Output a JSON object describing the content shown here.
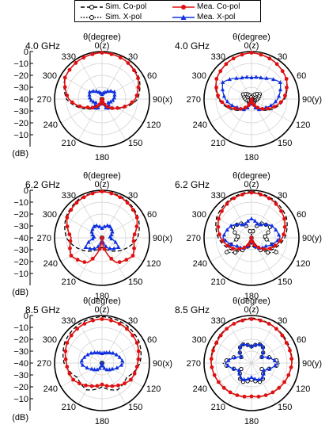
{
  "legend": [
    {
      "label": "Sim. Co-pol",
      "color": "#000000",
      "dash": "5,3",
      "marker": "none"
    },
    {
      "label": "Mea. Co-pol",
      "color": "#e01010",
      "dash": "",
      "marker": "dot"
    },
    {
      "label": "Sim. X-pol",
      "color": "#000000",
      "dash": "1.5,2",
      "marker": "circle"
    },
    {
      "label": "Mea. X-pol",
      "color": "#1030e0",
      "dash": "",
      "marker": "triangle"
    }
  ],
  "theta_title": "θ(degree)",
  "angle_labels": {
    "0": "0(z)",
    "30": "30",
    "60": "60",
    "120": "120",
    "150": "150",
    "180": "180",
    "210": "210",
    "240": "240",
    "270": "270",
    "300": "300",
    "330": "330"
  },
  "radial_ticks": [
    "0",
    "−10",
    "−20",
    "−30",
    "−40",
    "−30",
    "−20",
    "−10"
  ],
  "db_label": "(dB)",
  "colors": {
    "sim_co": "#000000",
    "mea_co": "#e01010",
    "sim_x": "#000000",
    "mea_x": "#1030e0"
  },
  "chart_data": [
    {
      "type": "polar",
      "frequency": "4.0 GHz",
      "axis90": "90(x)",
      "rlim": [
        -40,
        0
      ],
      "sim_co": {
        "theta": [
          0,
          30,
          60,
          90,
          120,
          150,
          180,
          210,
          240,
          270,
          300,
          330,
          360
        ],
        "db": [
          -1,
          -2,
          -4,
          -10,
          -24,
          -33,
          -36,
          -33,
          -24,
          -10,
          -4,
          -2,
          -1
        ]
      },
      "mea_co": {
        "theta": [
          0,
          30,
          60,
          90,
          120,
          150,
          180,
          210,
          240,
          270,
          300,
          330,
          360
        ],
        "db": [
          -1,
          -2,
          -5,
          -12,
          -25,
          -34,
          -40,
          -34,
          -26,
          -12,
          -4,
          -2,
          -1
        ]
      },
      "sim_x": {
        "theta": [
          0,
          60,
          120,
          180,
          240,
          300,
          360
        ],
        "db": [
          -40,
          -40,
          -40,
          -40,
          -40,
          -40,
          -40
        ]
      },
      "mea_x": {
        "theta": [
          0,
          30,
          60,
          90,
          120,
          150,
          180,
          210,
          240,
          270,
          300,
          330,
          360
        ],
        "db": [
          -36,
          -33,
          -28,
          -30,
          -34,
          -30,
          -40,
          -30,
          -34,
          -30,
          -28,
          -33,
          -36
        ]
      }
    },
    {
      "type": "polar",
      "frequency": "4.0 GHz",
      "axis90": "90(y)",
      "rlim": [
        -40,
        0
      ],
      "sim_co": {
        "theta": [
          0,
          30,
          60,
          90,
          120,
          150,
          180,
          210,
          240,
          270,
          300,
          330,
          360
        ],
        "db": [
          -1,
          -3,
          -6,
          -12,
          -22,
          -32,
          -36,
          -32,
          -22,
          -12,
          -6,
          -3,
          -1
        ]
      },
      "mea_co": {
        "theta": [
          0,
          30,
          60,
          90,
          120,
          150,
          180,
          210,
          240,
          270,
          300,
          330,
          360
        ],
        "db": [
          -1,
          -3,
          -6,
          -13,
          -24,
          -33,
          -40,
          -33,
          -24,
          -13,
          -6,
          -3,
          -1
        ]
      },
      "sim_x": {
        "theta": [
          0,
          30,
          60,
          90,
          120,
          150,
          180,
          210,
          240,
          270,
          300,
          330,
          360
        ],
        "db": [
          -40,
          -36,
          -32,
          -35,
          -38,
          -36,
          -40,
          -36,
          -38,
          -35,
          -32,
          -36,
          -40
        ]
      },
      "mea_x": {
        "theta": [
          0,
          30,
          60,
          90,
          120,
          150,
          180,
          210,
          240,
          270,
          300,
          330,
          360
        ],
        "db": [
          -22,
          -20,
          -12,
          -18,
          -26,
          -30,
          -40,
          -30,
          -26,
          -18,
          -12,
          -20,
          -22
        ]
      }
    },
    {
      "type": "polar",
      "frequency": "6.2 GHz",
      "axis90": "90(x)",
      "rlim": [
        -40,
        0
      ],
      "sim_co": {
        "theta": [
          0,
          30,
          60,
          90,
          120,
          150,
          180,
          210,
          240,
          270,
          300,
          330,
          360
        ],
        "db": [
          -1,
          -2,
          -5,
          -10,
          -20,
          -28,
          -32,
          -28,
          -20,
          -10,
          -5,
          -2,
          -1
        ]
      },
      "mea_co": {
        "theta": [
          0,
          30,
          60,
          90,
          120,
          150,
          180,
          210,
          240,
          270,
          300,
          330,
          360
        ],
        "db": [
          -1,
          -3,
          -6,
          -14,
          -10,
          -16,
          -40,
          -16,
          -10,
          -14,
          -6,
          -3,
          -1
        ]
      },
      "sim_x": {
        "theta": [
          0,
          60,
          120,
          180,
          240,
          300,
          360
        ],
        "db": [
          -40,
          -40,
          -40,
          -40,
          -40,
          -40,
          -40
        ]
      },
      "mea_x": {
        "theta": [
          0,
          30,
          60,
          90,
          120,
          150,
          180,
          210,
          240,
          270,
          300,
          330,
          360
        ],
        "db": [
          -32,
          -28,
          -30,
          -34,
          -24,
          -30,
          -40,
          -30,
          -24,
          -34,
          -30,
          -28,
          -32
        ]
      }
    },
    {
      "type": "polar",
      "frequency": "6.2 GHz",
      "axis90": "90(y)",
      "rlim": [
        -40,
        0
      ],
      "sim_co": {
        "theta": [
          0,
          30,
          60,
          90,
          120,
          150,
          180,
          210,
          240,
          270,
          300,
          330,
          360
        ],
        "db": [
          -1,
          -3,
          -6,
          -12,
          -20,
          -30,
          -34,
          -30,
          -20,
          -12,
          -6,
          -3,
          -1
        ]
      },
      "mea_co": {
        "theta": [
          0,
          30,
          60,
          90,
          120,
          150,
          180,
          210,
          240,
          270,
          300,
          330,
          360
        ],
        "db": [
          -2,
          -4,
          -8,
          -14,
          -22,
          -32,
          -40,
          -32,
          -22,
          -14,
          -8,
          -4,
          -2
        ]
      },
      "sim_x": {
        "theta": [
          0,
          30,
          60,
          90,
          120,
          150,
          180,
          210,
          240,
          270,
          300,
          330,
          360
        ],
        "db": [
          -40,
          -26,
          -22,
          -30,
          -16,
          -30,
          -40,
          -30,
          -16,
          -30,
          -22,
          -26,
          -40
        ]
      },
      "mea_x": {
        "theta": [
          0,
          30,
          60,
          90,
          120,
          150,
          180,
          210,
          240,
          270,
          300,
          330,
          360
        ],
        "db": [
          -24,
          -28,
          -20,
          -16,
          -26,
          -30,
          -40,
          -30,
          -26,
          -16,
          -20,
          -28,
          -24
        ]
      }
    },
    {
      "type": "polar",
      "frequency": "8.5 GHz",
      "axis90": "90(x)",
      "rlim": [
        -40,
        0
      ],
      "sim_co": {
        "theta": [
          0,
          30,
          60,
          90,
          120,
          150,
          180,
          210,
          240,
          270,
          300,
          330,
          360
        ],
        "db": [
          -1,
          -2,
          -4,
          -8,
          -16,
          -14,
          -20,
          -14,
          -16,
          -8,
          -4,
          -2,
          -1
        ]
      },
      "mea_co": {
        "theta": [
          0,
          30,
          60,
          90,
          120,
          150,
          180,
          210,
          240,
          270,
          300,
          330,
          360
        ],
        "db": [
          -3,
          -4,
          -6,
          -10,
          -12,
          -18,
          -22,
          -18,
          -12,
          -10,
          -6,
          -4,
          -3
        ]
      },
      "sim_x": {
        "theta": [
          0,
          60,
          120,
          180,
          240,
          300,
          360
        ],
        "db": [
          -40,
          -40,
          -40,
          -40,
          -40,
          -40,
          -40
        ]
      },
      "mea_x": {
        "theta": [
          0,
          30,
          60,
          90,
          120,
          150,
          180,
          210,
          240,
          270,
          300,
          330,
          360
        ],
        "db": [
          -32,
          -30,
          -26,
          -22,
          -30,
          -34,
          -40,
          -34,
          -30,
          -22,
          -26,
          -30,
          -32
        ]
      }
    },
    {
      "type": "polar",
      "frequency": "8.5 GHz",
      "axis90": "90(y)",
      "rlim": [
        -40,
        0
      ],
      "sim_co": {
        "theta": [
          0,
          30,
          60,
          90,
          120,
          150,
          180,
          210,
          240,
          270,
          300,
          330,
          360
        ],
        "db": [
          -2,
          -4,
          -5,
          -6,
          -8,
          -10,
          -12,
          -10,
          -8,
          -6,
          -5,
          -4,
          -2
        ]
      },
      "mea_co": {
        "theta": [
          0,
          30,
          60,
          90,
          120,
          150,
          180,
          210,
          240,
          270,
          300,
          330,
          360
        ],
        "db": [
          -3,
          -4,
          -6,
          -6,
          -8,
          -10,
          -12,
          -10,
          -8,
          -6,
          -6,
          -4,
          -3
        ]
      },
      "sim_x": {
        "theta": [
          0,
          30,
          60,
          90,
          120,
          150,
          180,
          210,
          240,
          270,
          300,
          330,
          360
        ],
        "db": [
          -26,
          -22,
          -30,
          -16,
          -30,
          -22,
          -26,
          -22,
          -30,
          -16,
          -30,
          -22,
          -26
        ]
      },
      "mea_x": {
        "theta": [
          0,
          30,
          60,
          90,
          120,
          150,
          180,
          210,
          240,
          270,
          300,
          330,
          360
        ],
        "db": [
          -26,
          -22,
          -30,
          -18,
          -28,
          -24,
          -28,
          -24,
          -28,
          -18,
          -30,
          -22,
          -26
        ]
      }
    }
  ]
}
